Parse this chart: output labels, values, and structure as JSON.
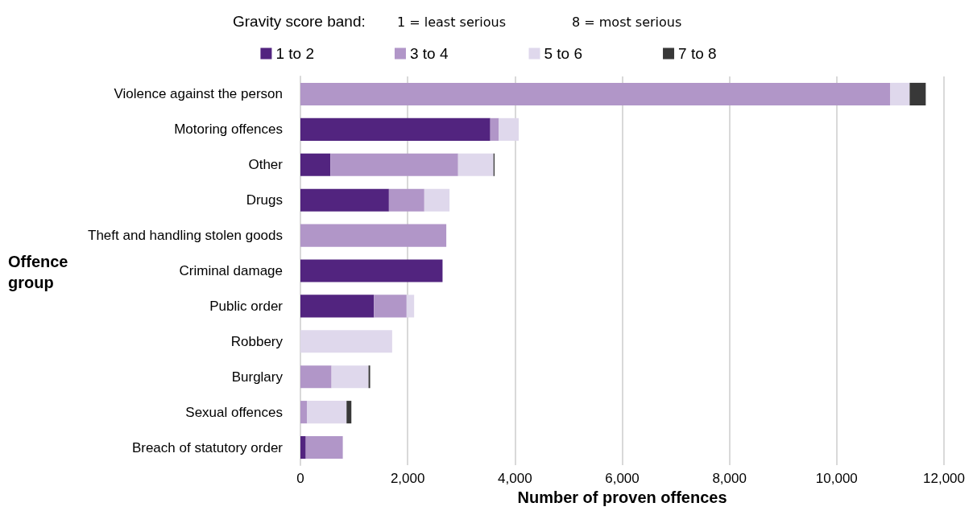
{
  "chart_data": {
    "type": "bar",
    "orientation": "horizontal",
    "stacked": true,
    "legend_title": "Gravity score band:",
    "annotations": [
      "1 = least serious",
      "8 = most serious"
    ],
    "xlabel": "Number of proven offences",
    "ylabel": "Offence group",
    "categories": [
      "Violence against the person",
      "Motoring offences",
      "Other",
      "Drugs",
      "Theft and handling stolen goods",
      "Criminal damage",
      "Public order",
      "Robbery",
      "Burglary",
      "Sexual offences",
      "Breach of statutory order"
    ],
    "series": [
      {
        "name": "1 to 2",
        "color": "#52247f",
        "values": [
          0,
          3540,
          560,
          1650,
          0,
          2650,
          1370,
          0,
          0,
          0,
          100
        ]
      },
      {
        "name": "3 to 4",
        "color": "#b196c8",
        "values": [
          11000,
          160,
          2380,
          660,
          2720,
          0,
          610,
          0,
          580,
          120,
          690
        ]
      },
      {
        "name": "5 to 6",
        "color": "#dfd8ec",
        "values": [
          360,
          370,
          660,
          470,
          0,
          0,
          140,
          1710,
          690,
          740,
          0
        ]
      },
      {
        "name": "7 to 8",
        "color": "#383838",
        "values": [
          300,
          0,
          20,
          0,
          0,
          0,
          0,
          0,
          30,
          90,
          0
        ]
      }
    ],
    "xlim": [
      0,
      12000
    ],
    "xticks": [
      0,
      {
        "value": 2000,
        "label": "2,000"
      },
      {
        "value": 4000,
        "label": "4,000"
      },
      {
        "value": 6000,
        "label": "6,000"
      },
      {
        "value": 8000,
        "label": "8,000"
      },
      {
        "value": 10000,
        "label": "10,000"
      },
      {
        "value": 12000,
        "label": "12,000"
      }
    ],
    "grid": "x",
    "legend": "top"
  }
}
